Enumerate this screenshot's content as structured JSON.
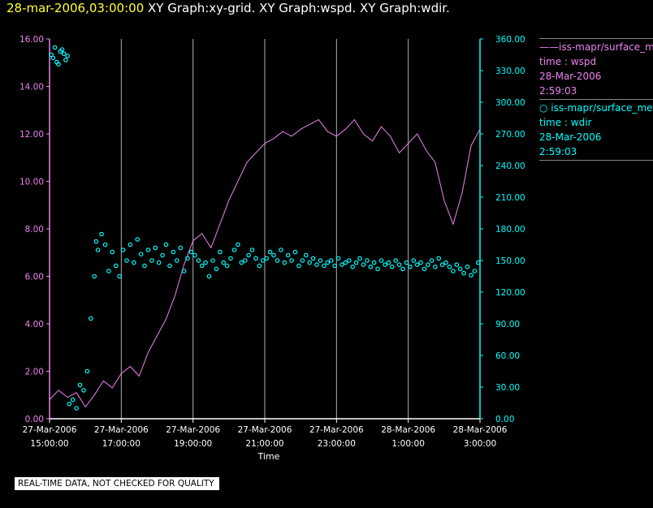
{
  "header": {
    "timestamp": "28-mar-2006,03:00:00",
    "titles": "XY Graph:xy-grid.  XY Graph:wspd.  XY Graph:wdir."
  },
  "legend": {
    "s1_name": "iss-mapr/surface_met",
    "s1_line2": "time : wspd",
    "s1_line3": "28-Mar-2006",
    "s1_line4": "2:59:03",
    "s2_name": "iss-mapr/surface_met",
    "s2_line2": "time : wdir",
    "s2_line3": "28-Mar-2006",
    "s2_line4": "2:59:03"
  },
  "footer": {
    "disclaimer": "REAL-TIME DATA, NOT CHECKED FOR QUALITY"
  },
  "colors": {
    "wspd": "#ee82ee",
    "wdir": "#00ffff",
    "grid": "#b0b0b0",
    "text": "#ffffff",
    "timestamp": "#ffff33"
  },
  "chart_data": {
    "type": "line",
    "xlabel": "Time",
    "xlim": [
      15,
      27
    ],
    "x_ticks": [
      {
        "x": 15,
        "line1": "27-Mar-2006",
        "line2": "15:00:00"
      },
      {
        "x": 17,
        "line1": "27-Mar-2006",
        "line2": "17:00:00"
      },
      {
        "x": 19,
        "line1": "27-Mar-2006",
        "line2": "19:00:00"
      },
      {
        "x": 21,
        "line1": "27-Mar-2006",
        "line2": "21:00:00"
      },
      {
        "x": 23,
        "line1": "27-Mar-2006",
        "line2": "23:00:00"
      },
      {
        "x": 25,
        "line1": "28-Mar-2006",
        "line2": "1:00:00"
      },
      {
        "x": 27,
        "line1": "28-Mar-2006",
        "line2": "3:00:00"
      }
    ],
    "y_left": {
      "range": [
        0,
        16
      ],
      "ticks": [
        "0.00",
        "2.00",
        "4.00",
        "6.00",
        "8.00",
        "10.00",
        "12.00",
        "14.00",
        "16.00"
      ]
    },
    "y_right": {
      "range": [
        0,
        360
      ],
      "ticks": [
        "0.00",
        "30.00",
        "60.00",
        "90.00",
        "120.00",
        "150.00",
        "180.00",
        "210.00",
        "240.00",
        "270.00",
        "300.00",
        "330.00",
        "360.00"
      ]
    },
    "grid": "vertical lines at each time tick",
    "series": [
      {
        "axis": "left",
        "style": "line",
        "x": [
          15.0,
          15.25,
          15.5,
          15.75,
          16.0,
          16.25,
          16.5,
          16.75,
          17.0,
          17.25,
          17.5,
          17.75,
          18.0,
          18.25,
          18.5,
          18.75,
          19.0,
          19.25,
          19.5,
          19.75,
          20.0,
          20.25,
          20.5,
          20.75,
          21.0,
          21.25,
          21.5,
          21.75,
          22.0,
          22.25,
          22.5,
          22.75,
          23.0,
          23.25,
          23.5,
          23.75,
          24.0,
          24.25,
          24.5,
          24.75,
          25.0,
          25.25,
          25.5,
          25.75,
          26.0,
          26.25,
          26.5,
          26.75,
          27.0
        ],
        "y": [
          0.8,
          1.2,
          0.9,
          1.1,
          0.5,
          1.0,
          1.6,
          1.3,
          1.9,
          2.2,
          1.8,
          2.8,
          3.5,
          4.2,
          5.2,
          6.5,
          7.5,
          7.8,
          7.2,
          8.2,
          9.2,
          10.0,
          10.8,
          11.2,
          11.6,
          11.8,
          12.1,
          11.9,
          12.2,
          12.4,
          12.6,
          12.1,
          11.9,
          12.2,
          12.6,
          12.0,
          11.7,
          12.3,
          11.9,
          11.2,
          11.6,
          12.0,
          11.3,
          10.8,
          9.2,
          8.2,
          9.5,
          11.5,
          12.2
        ]
      },
      {
        "axis": "right",
        "style": "circles",
        "x": [
          15.05,
          15.1,
          15.15,
          15.2,
          15.25,
          15.3,
          15.35,
          15.4,
          15.45,
          15.5,
          15.55,
          15.65,
          15.75,
          15.85,
          15.95,
          16.05,
          16.15,
          16.25,
          16.3,
          16.35,
          16.45,
          16.55,
          16.65,
          16.75,
          16.85,
          16.95,
          17.05,
          17.15,
          17.25,
          17.35,
          17.45,
          17.55,
          17.65,
          17.75,
          17.85,
          17.95,
          18.05,
          18.15,
          18.25,
          18.35,
          18.45,
          18.55,
          18.65,
          18.75,
          18.85,
          18.95,
          19.05,
          19.15,
          19.25,
          19.35,
          19.45,
          19.55,
          19.65,
          19.75,
          19.85,
          19.95,
          20.05,
          20.15,
          20.25,
          20.35,
          20.45,
          20.55,
          20.65,
          20.75,
          20.85,
          20.95,
          21.05,
          21.15,
          21.25,
          21.35,
          21.45,
          21.55,
          21.65,
          21.75,
          21.85,
          21.95,
          22.05,
          22.15,
          22.25,
          22.35,
          22.45,
          22.55,
          22.65,
          22.75,
          22.85,
          22.95,
          23.05,
          23.15,
          23.25,
          23.35,
          23.45,
          23.55,
          23.65,
          23.75,
          23.85,
          23.95,
          24.05,
          24.15,
          24.25,
          24.35,
          24.45,
          24.55,
          24.65,
          24.75,
          24.85,
          24.95,
          25.05,
          25.15,
          25.25,
          25.35,
          25.45,
          25.55,
          25.65,
          25.75,
          25.85,
          25.95,
          26.05,
          26.15,
          26.25,
          26.35,
          26.45,
          26.55,
          26.65,
          26.75,
          26.85,
          26.95
        ],
        "y": [
          345,
          342,
          352,
          338,
          336,
          348,
          350,
          346,
          340,
          344,
          14,
          18,
          10,
          32,
          27,
          45,
          95,
          135,
          168,
          160,
          175,
          165,
          140,
          158,
          145,
          135,
          160,
          150,
          165,
          148,
          170,
          156,
          145,
          160,
          150,
          162,
          148,
          155,
          165,
          145,
          158,
          150,
          162,
          140,
          152,
          158,
          155,
          150,
          145,
          148,
          135,
          150,
          142,
          158,
          148,
          145,
          152,
          160,
          165,
          148,
          150,
          155,
          160,
          152,
          145,
          150,
          152,
          158,
          155,
          150,
          160,
          148,
          155,
          150,
          158,
          145,
          150,
          155,
          148,
          152,
          146,
          150,
          145,
          148,
          150,
          145,
          152,
          146,
          148,
          150,
          144,
          148,
          152,
          146,
          150,
          144,
          148,
          142,
          150,
          146,
          148,
          144,
          150,
          146,
          142,
          148,
          144,
          150,
          146,
          148,
          142,
          146,
          150,
          144,
          152,
          146,
          148,
          144,
          140,
          146,
          142,
          138,
          144,
          136,
          140,
          148
        ]
      }
    ]
  }
}
